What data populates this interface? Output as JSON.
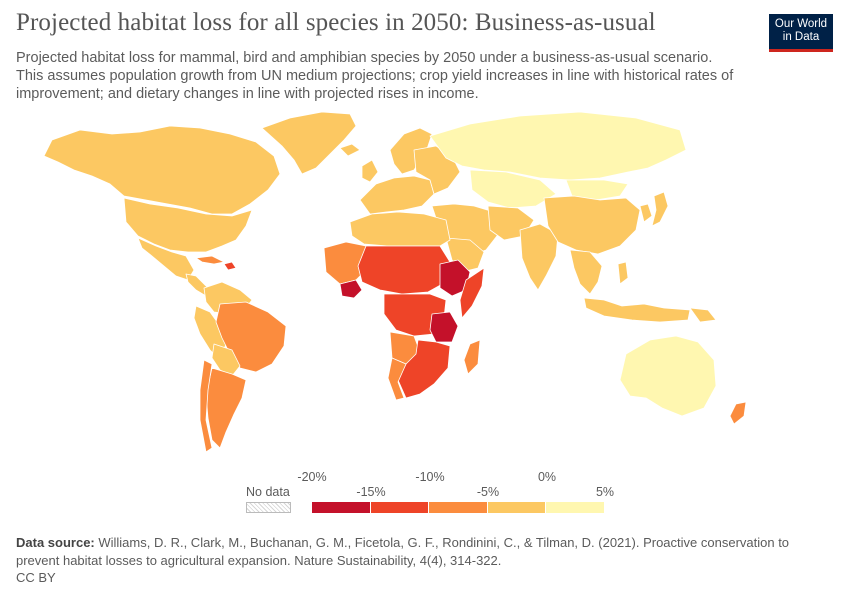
{
  "header": {
    "title": "Projected habitat loss for all species in 2050: Business-as-usual",
    "subtitle": "Projected habitat loss for mammal, bird and amphibian species by 2050 under a business-as-usual scenario. This assumes population growth from UN medium projections; crop yield increases in line with historical rates of improvement; and dietary changes in line with projected rises in income."
  },
  "logo": {
    "line1": "Our World",
    "line2": "in Data"
  },
  "legend": {
    "no_data_label": "No data",
    "bins": [
      {
        "from": -20,
        "to": -15,
        "color": "#c4112a"
      },
      {
        "from": -15,
        "to": -10,
        "color": "#ee4428"
      },
      {
        "from": -10,
        "to": -5,
        "color": "#fb8c3e"
      },
      {
        "from": -5,
        "to": 0,
        "color": "#fcc862"
      },
      {
        "from": 0,
        "to": 5,
        "color": "#fff7b0"
      }
    ],
    "ticks_top": [
      "-20%",
      "-10%",
      "0%"
    ],
    "ticks_bottom": [
      "-15%",
      "-5%",
      "5%"
    ]
  },
  "map_colors": {
    "background_region": "#fcc862",
    "ocean_outline": "#ffffff",
    "low_loss_region": "#fff7b0",
    "moderate_region": "#fb8c3e",
    "high_region": "#ee4428",
    "severe_region": "#c4112a"
  },
  "footer": {
    "source_label": "Data source:",
    "source_text": " Williams, D. R., Clark, M., Buchanan, G. M., Ficetola, G. F., Rondinini, C., & Tilman, D. (2021). Proactive conservation to prevent habitat losses to agricultural expansion. Nature Sustainability, 4(4), 314-322.",
    "license": "CC BY"
  }
}
